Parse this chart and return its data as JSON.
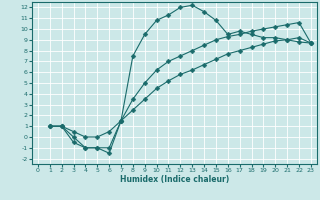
{
  "title": "",
  "xlabel": "Humidex (Indice chaleur)",
  "xlim": [
    -0.5,
    23.5
  ],
  "ylim": [
    -2.5,
    12.5
  ],
  "xticks": [
    0,
    1,
    2,
    3,
    4,
    5,
    6,
    7,
    8,
    9,
    10,
    11,
    12,
    13,
    14,
    15,
    16,
    17,
    18,
    19,
    20,
    21,
    22,
    23
  ],
  "yticks": [
    -2,
    -1,
    0,
    1,
    2,
    3,
    4,
    5,
    6,
    7,
    8,
    9,
    10,
    11,
    12
  ],
  "bg_color": "#cce8e8",
  "line_color": "#1a6b6b",
  "grid_color": "#ffffff",
  "line1_x": [
    1,
    2,
    3,
    4,
    5,
    6,
    7,
    8,
    9,
    10,
    11,
    12,
    13,
    14,
    15,
    16,
    17,
    18,
    19,
    20,
    21,
    22,
    23
  ],
  "line1_y": [
    1.0,
    1.0,
    0.0,
    -1.0,
    -1.0,
    -1.5,
    1.5,
    7.5,
    9.5,
    10.8,
    11.3,
    12.0,
    12.2,
    11.6,
    10.8,
    9.5,
    9.8,
    9.5,
    9.2,
    9.2,
    9.0,
    8.8,
    8.7
  ],
  "line2_x": [
    1,
    2,
    3,
    4,
    5,
    6,
    7,
    8,
    9,
    10,
    11,
    12,
    13,
    14,
    15,
    16,
    17,
    18,
    19,
    20,
    21,
    22,
    23
  ],
  "line2_y": [
    1.0,
    1.0,
    -0.5,
    -1.0,
    -1.0,
    -1.0,
    1.5,
    3.5,
    5.0,
    6.2,
    7.0,
    7.5,
    8.0,
    8.5,
    9.0,
    9.3,
    9.5,
    9.8,
    10.0,
    10.2,
    10.4,
    10.6,
    8.7
  ],
  "line3_x": [
    1,
    2,
    3,
    4,
    5,
    6,
    7,
    8,
    9,
    10,
    11,
    12,
    13,
    14,
    15,
    16,
    17,
    18,
    19,
    20,
    21,
    22,
    23
  ],
  "line3_y": [
    1.0,
    1.0,
    0.5,
    0.0,
    0.0,
    0.5,
    1.5,
    2.5,
    3.5,
    4.5,
    5.2,
    5.8,
    6.2,
    6.7,
    7.2,
    7.7,
    8.0,
    8.3,
    8.6,
    8.9,
    9.0,
    9.2,
    8.7
  ],
  "tick_fontsize": 4.5,
  "xlabel_fontsize": 5.5,
  "marker_size": 2.5,
  "line_width": 0.8
}
